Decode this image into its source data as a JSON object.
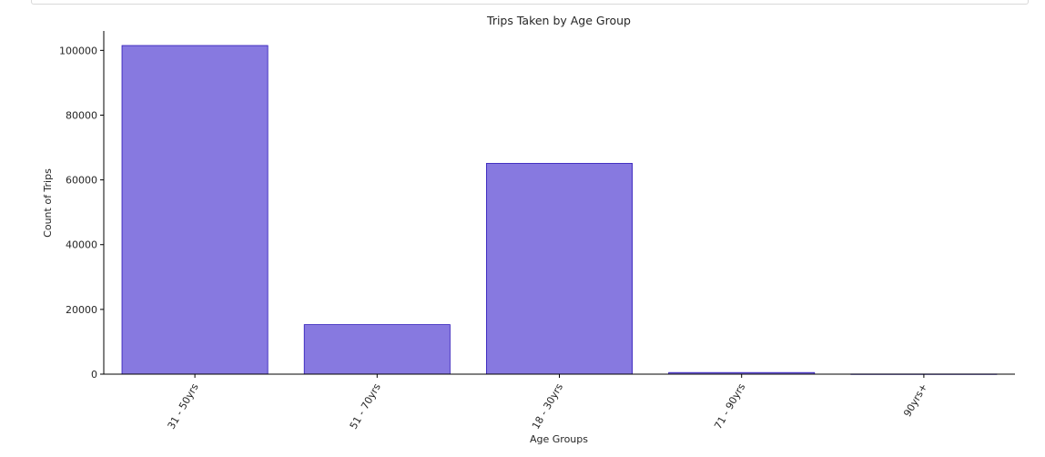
{
  "chart_data": {
    "type": "bar",
    "title": "Trips Taken by Age Group",
    "xlabel": "Age Groups",
    "ylabel": "Count of Trips",
    "categories": [
      "31 - 50yrs",
      "51 - 70yrs",
      "18 - 30yrs",
      "71 - 90yrs",
      "90yrs+"
    ],
    "values": [
      101500,
      15300,
      65100,
      500,
      50
    ],
    "ylim": [
      0,
      106000
    ],
    "yticks": [
      0,
      20000,
      40000,
      60000,
      80000,
      100000
    ],
    "ytick_labels": [
      "0",
      "20000",
      "40000",
      "60000",
      "80000",
      "100000"
    ],
    "bar_color": "#8779e0",
    "bar_edge_color": "#2b16b8",
    "grid": false,
    "legend": "none"
  }
}
